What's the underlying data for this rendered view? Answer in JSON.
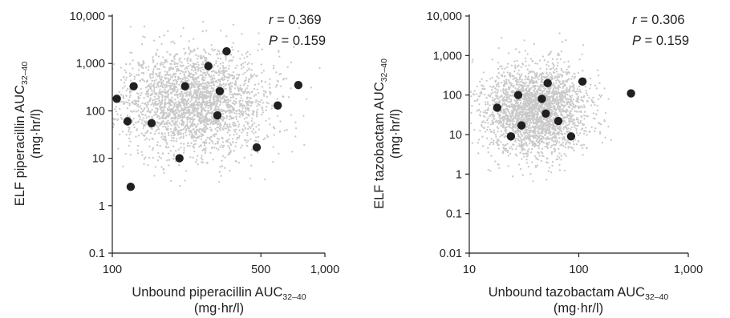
{
  "chart_data": [
    {
      "type": "scatter",
      "x_scale": "log",
      "y_scale": "log",
      "xlim": [
        100,
        1000
      ],
      "ylim": [
        0.1,
        10000
      ],
      "x_ticks": [
        100,
        500,
        1000
      ],
      "x_tick_labels": [
        "100",
        "500",
        "1,000"
      ],
      "y_ticks": [
        0.1,
        1,
        10,
        100,
        1000,
        10000
      ],
      "y_tick_labels": [
        "0.1",
        "1",
        "10",
        "100",
        "1,000",
        "10,000"
      ],
      "xlabel": {
        "main": "Unbound piperacillin AUC",
        "sub": "32–40",
        "unit": "(mg·hr/l)"
      },
      "ylabel": {
        "main": "ELF piperacillin AUC",
        "sub": "32–40",
        "unit": "(mg·hr/l)"
      },
      "annotation": {
        "r_symbol": "r",
        "r_text": " = 0.369",
        "p_symbol": "P",
        "p_text": " = 0.159"
      },
      "background": {
        "color": "#c9c9c9",
        "count": 2600,
        "center": [
          245,
          150
        ],
        "log_sd": [
          0.17,
          0.55
        ],
        "seed": 11
      },
      "points": [
        {
          "x": 105,
          "y": 180
        },
        {
          "x": 118,
          "y": 60
        },
        {
          "x": 122,
          "y": 2.5
        },
        {
          "x": 126,
          "y": 330
        },
        {
          "x": 153,
          "y": 55
        },
        {
          "x": 207,
          "y": 10
        },
        {
          "x": 220,
          "y": 330
        },
        {
          "x": 283,
          "y": 880
        },
        {
          "x": 312,
          "y": 80
        },
        {
          "x": 320,
          "y": 260
        },
        {
          "x": 345,
          "y": 1800
        },
        {
          "x": 478,
          "y": 17
        },
        {
          "x": 600,
          "y": 130
        },
        {
          "x": 750,
          "y": 350
        }
      ]
    },
    {
      "type": "scatter",
      "x_scale": "log",
      "y_scale": "log",
      "xlim": [
        10,
        1000
      ],
      "ylim": [
        0.01,
        10000
      ],
      "x_ticks": [
        10,
        100,
        1000
      ],
      "x_tick_labels": [
        "10",
        "100",
        "1,000"
      ],
      "y_ticks": [
        0.01,
        0.1,
        1,
        10,
        100,
        1000,
        10000
      ],
      "y_tick_labels": [
        "0.01",
        "0.1",
        "1",
        "10",
        "100",
        "1,000",
        "10,000"
      ],
      "xlabel": {
        "main": "Unbound tazobactam AUC",
        "sub": "32–40",
        "unit": "(mg·hr/l)"
      },
      "ylabel": {
        "main": "ELF tazobactam AUC",
        "sub": "32–40",
        "unit": "(mg·hr/l)"
      },
      "annotation": {
        "r_symbol": "r",
        "r_text": " = 0.306",
        "p_symbol": "P",
        "p_text": " = 0.159"
      },
      "background": {
        "color": "#c9c9c9",
        "count": 2600,
        "center": [
          40,
          40
        ],
        "log_sd": [
          0.23,
          0.55
        ],
        "seed": 23
      },
      "points": [
        {
          "x": 18,
          "y": 48
        },
        {
          "x": 24,
          "y": 9
        },
        {
          "x": 28,
          "y": 100
        },
        {
          "x": 30,
          "y": 17
        },
        {
          "x": 46,
          "y": 80
        },
        {
          "x": 50,
          "y": 34
        },
        {
          "x": 52,
          "y": 200
        },
        {
          "x": 65,
          "y": 22
        },
        {
          "x": 85,
          "y": 9
        },
        {
          "x": 108,
          "y": 220
        },
        {
          "x": 300,
          "y": 110
        }
      ]
    }
  ]
}
